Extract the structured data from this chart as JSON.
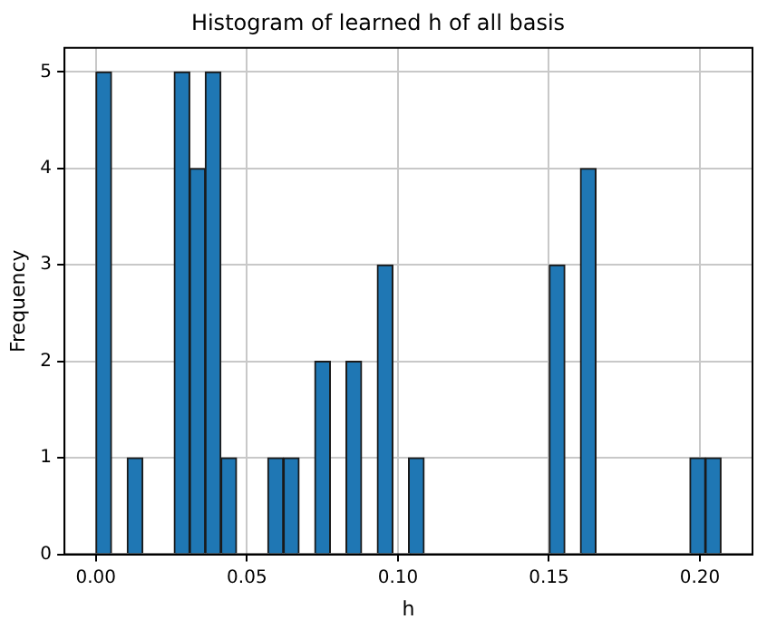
{
  "chart_data": {
    "type": "histogram",
    "title": "Histogram of learned h of all basis",
    "xlabel": "h",
    "ylabel": "Frequency",
    "bins": [
      0,
      0.0052,
      0.0104,
      0.0155,
      0.0207,
      0.0259,
      0.0311,
      0.0362,
      0.0414,
      0.0466,
      0.0518,
      0.0569,
      0.0621,
      0.0673,
      0.0725,
      0.0776,
      0.0828,
      0.088,
      0.0932,
      0.0983,
      0.1035,
      0.1087,
      0.1139,
      0.119,
      0.1242,
      0.1294,
      0.1346,
      0.1397,
      0.1449,
      0.1501,
      0.1553,
      0.1604,
      0.1656,
      0.1708,
      0.176,
      0.1811,
      0.1863,
      0.1915,
      0.1967,
      0.2018,
      0.207
    ],
    "values": [
      5,
      0,
      1,
      0,
      0,
      5,
      4,
      5,
      1,
      0,
      0,
      1,
      1,
      0,
      2,
      0,
      2,
      0,
      3,
      0,
      1,
      0,
      0,
      0,
      0,
      0,
      0,
      0,
      0,
      3,
      0,
      4,
      0,
      0,
      0,
      0,
      0,
      0,
      1,
      1
    ],
    "color": "#1f77b4",
    "xlim": [
      -0.0104,
      0.2174
    ],
    "ylim": [
      0,
      5.25
    ],
    "xticks": [
      {
        "value": 0,
        "label": "0.00"
      },
      {
        "value": 0.05,
        "label": "0.05"
      },
      {
        "value": 0.1,
        "label": "0.10"
      },
      {
        "value": 0.15,
        "label": "0.15"
      },
      {
        "value": 0.2,
        "label": "0.20"
      }
    ],
    "yticks": [
      0,
      1,
      2,
      3,
      4,
      5
    ],
    "grid": true
  }
}
